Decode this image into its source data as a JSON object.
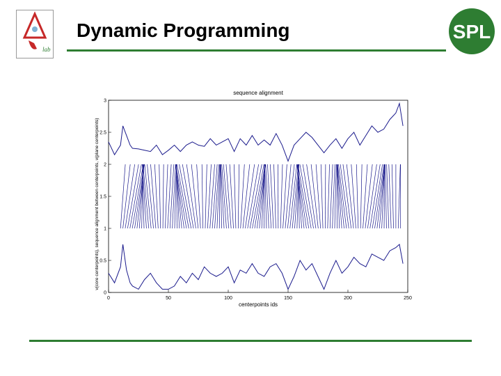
{
  "slide": {
    "title": "Dynamic Programming"
  },
  "logos": {
    "left_text": "lab",
    "right_text": "SPL"
  },
  "colors": {
    "accent_green": "#2e7d32",
    "series_blue": "#1a1a8c",
    "logo_red": "#c62828"
  },
  "chart_data": {
    "type": "line",
    "title": "sequence alignment",
    "xlabel": "centerpoints ids",
    "ylabel": "v(core centerpoints), sequence alignment between centerpoints, v(plane centerpoints)",
    "xlim": [
      0,
      250
    ],
    "ylim": [
      0,
      3
    ],
    "xticks": [
      0,
      50,
      100,
      150,
      200,
      250
    ],
    "yticks": [
      0,
      0.5,
      1,
      1.5,
      2,
      2.5,
      3
    ],
    "ytick_labels": [
      "0",
      "0.5",
      "1",
      "1.5",
      "2",
      "2.5",
      "3"
    ],
    "grid": false,
    "series": [
      {
        "x": [
          0,
          5,
          10,
          12,
          15,
          18,
          20,
          25,
          30,
          35,
          40,
          45,
          50,
          55,
          60,
          65,
          70,
          75,
          80,
          85,
          90,
          95,
          100,
          105,
          110,
          115,
          120,
          125,
          130,
          135,
          140,
          145,
          150,
          155,
          160,
          165,
          170,
          175,
          180,
          185,
          190,
          195,
          200,
          205,
          210,
          215,
          220,
          225,
          230,
          235,
          240,
          243,
          246
        ],
        "values": [
          2.35,
          2.15,
          2.3,
          2.6,
          2.45,
          2.3,
          2.25,
          2.24,
          2.22,
          2.2,
          2.3,
          2.15,
          2.22,
          2.3,
          2.2,
          2.3,
          2.35,
          2.3,
          2.28,
          2.4,
          2.3,
          2.35,
          2.4,
          2.2,
          2.4,
          2.3,
          2.45,
          2.3,
          2.38,
          2.3,
          2.48,
          2.3,
          2.05,
          2.3,
          2.4,
          2.5,
          2.42,
          2.3,
          2.18,
          2.3,
          2.4,
          2.25,
          2.4,
          2.5,
          2.3,
          2.45,
          2.6,
          2.5,
          2.55,
          2.7,
          2.8,
          2.95,
          2.6
        ]
      },
      {
        "x": [
          0,
          5,
          10,
          12,
          15,
          18,
          20,
          25,
          30,
          35,
          40,
          45,
          50,
          55,
          60,
          65,
          70,
          75,
          80,
          85,
          90,
          95,
          100,
          105,
          110,
          115,
          120,
          125,
          130,
          135,
          140,
          145,
          150,
          155,
          160,
          165,
          170,
          175,
          180,
          185,
          190,
          195,
          200,
          205,
          210,
          215,
          220,
          225,
          230,
          235,
          240,
          243,
          246
        ],
        "values": [
          0.3,
          0.15,
          0.4,
          0.75,
          0.35,
          0.15,
          0.1,
          0.05,
          0.2,
          0.3,
          0.15,
          0.05,
          0.05,
          0.1,
          0.25,
          0.15,
          0.3,
          0.2,
          0.4,
          0.3,
          0.25,
          0.3,
          0.4,
          0.15,
          0.35,
          0.3,
          0.45,
          0.3,
          0.25,
          0.4,
          0.45,
          0.3,
          0.05,
          0.25,
          0.5,
          0.35,
          0.45,
          0.25,
          0.05,
          0.3,
          0.5,
          0.3,
          0.4,
          0.55,
          0.45,
          0.4,
          0.6,
          0.55,
          0.5,
          0.65,
          0.7,
          0.75,
          0.45
        ]
      }
    ],
    "alignment_lines": {
      "from_y": 1,
      "to_y": 2,
      "count": 120,
      "x_range": [
        10,
        244
      ]
    }
  }
}
